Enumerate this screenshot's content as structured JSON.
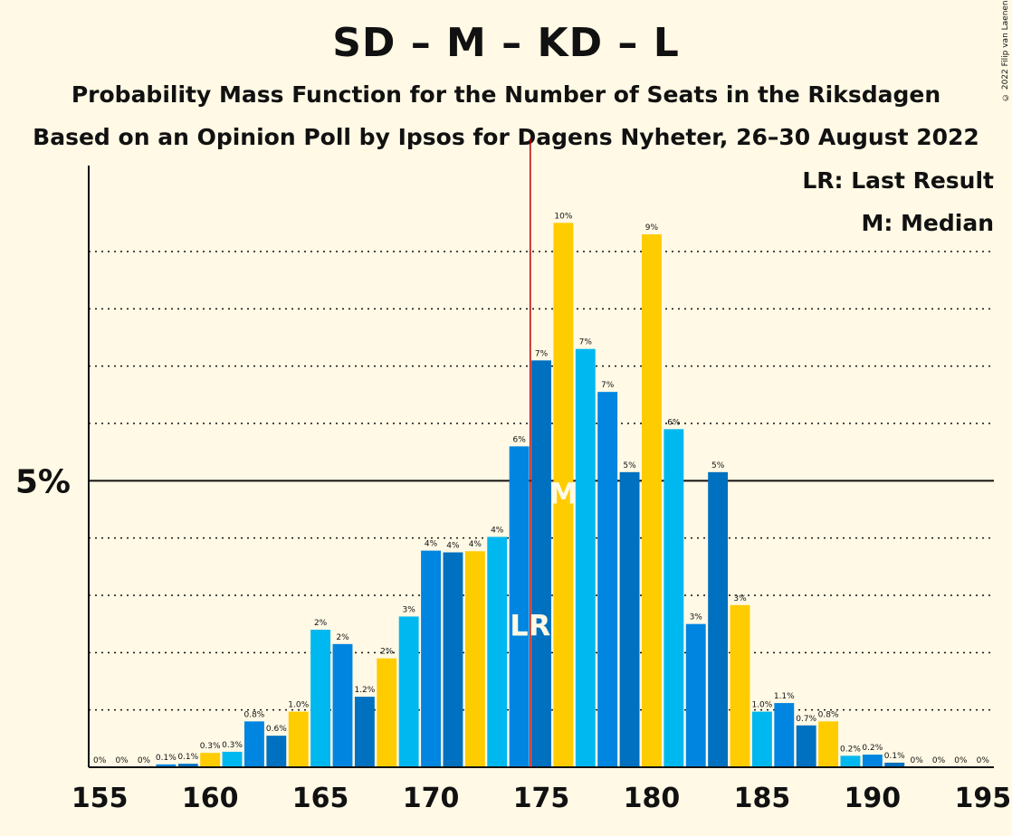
{
  "header": {
    "title": "SD – M – KD – L",
    "subtitle": "Probability Mass Function for the Number of Seats in the Riksdagen",
    "subtitle2": "Based on an Opinion Poll by Ipsos for Dagens Nyheter, 26–30 August 2022",
    "copyright": "© 2022 Filip van Laenen"
  },
  "legend": {
    "last_result": "LR: Last Result",
    "median": "M: Median"
  },
  "colors": {
    "background": "#FFF9E5",
    "bar_colors": [
      "#0070C0",
      "#FFCC00",
      "#00B8F0",
      "#0085E0"
    ],
    "last_result_line": "#C00000",
    "axis": "#111111",
    "marker_text": "#FFF9E5"
  },
  "chart_data": {
    "type": "bar",
    "title": "SD – M – KD – L",
    "xlabel": "",
    "ylabel": "",
    "xlim": [
      155,
      195
    ],
    "ylim": [
      0,
      10.5
    ],
    "y_major_tick": {
      "value": 5,
      "label": "5%"
    },
    "y_minor_ticks": [
      1,
      2,
      3,
      4,
      6,
      7,
      8,
      9
    ],
    "x_ticks": [
      155,
      160,
      165,
      170,
      175,
      180,
      185,
      190,
      195
    ],
    "x_tick_labels": [
      "155",
      "160",
      "165",
      "170",
      "175",
      "180",
      "185",
      "190",
      "195"
    ],
    "seats": [
      155,
      156,
      157,
      158,
      159,
      160,
      161,
      162,
      163,
      164,
      165,
      166,
      167,
      168,
      169,
      170,
      171,
      172,
      173,
      174,
      175,
      176,
      177,
      178,
      179,
      180,
      181,
      182,
      183,
      184,
      185,
      186,
      187,
      188,
      189,
      190,
      191,
      192,
      193,
      194,
      195
    ],
    "values": [
      0,
      0,
      0,
      0.05,
      0.06,
      0.25,
      0.27,
      0.8,
      0.55,
      0.97,
      2.4,
      2.15,
      1.23,
      1.9,
      2.63,
      3.78,
      3.75,
      3.77,
      4.02,
      5.6,
      7.1,
      9.5,
      7.3,
      6.55,
      5.15,
      9.3,
      5.9,
      2.5,
      5.15,
      2.83,
      0.97,
      1.12,
      0.73,
      0.8,
      0.2,
      0.22,
      0.08,
      0,
      0,
      0,
      0
    ],
    "data_labels": [
      "0%",
      "0%",
      "0%",
      "0.1%",
      "0.1%",
      "0.3%",
      "0.3%",
      "0.8%",
      "0.6%",
      "1.0%",
      "2%",
      "2%",
      "1.2%",
      "2%",
      "3%",
      "4%",
      "4%",
      "4%",
      "4%",
      "6%",
      "7%",
      "10%",
      "7%",
      "7%",
      "5%",
      "9%",
      "6%",
      "3%",
      "5%",
      "3%",
      "1.0%",
      "1.1%",
      "0.7%",
      "0.8%",
      "0.2%",
      "0.2%",
      "0.1%",
      "0%",
      "0%",
      "0%",
      "0%"
    ],
    "last_result": 175,
    "median": 176,
    "last_result_marker": "LR",
    "median_marker": "M"
  }
}
